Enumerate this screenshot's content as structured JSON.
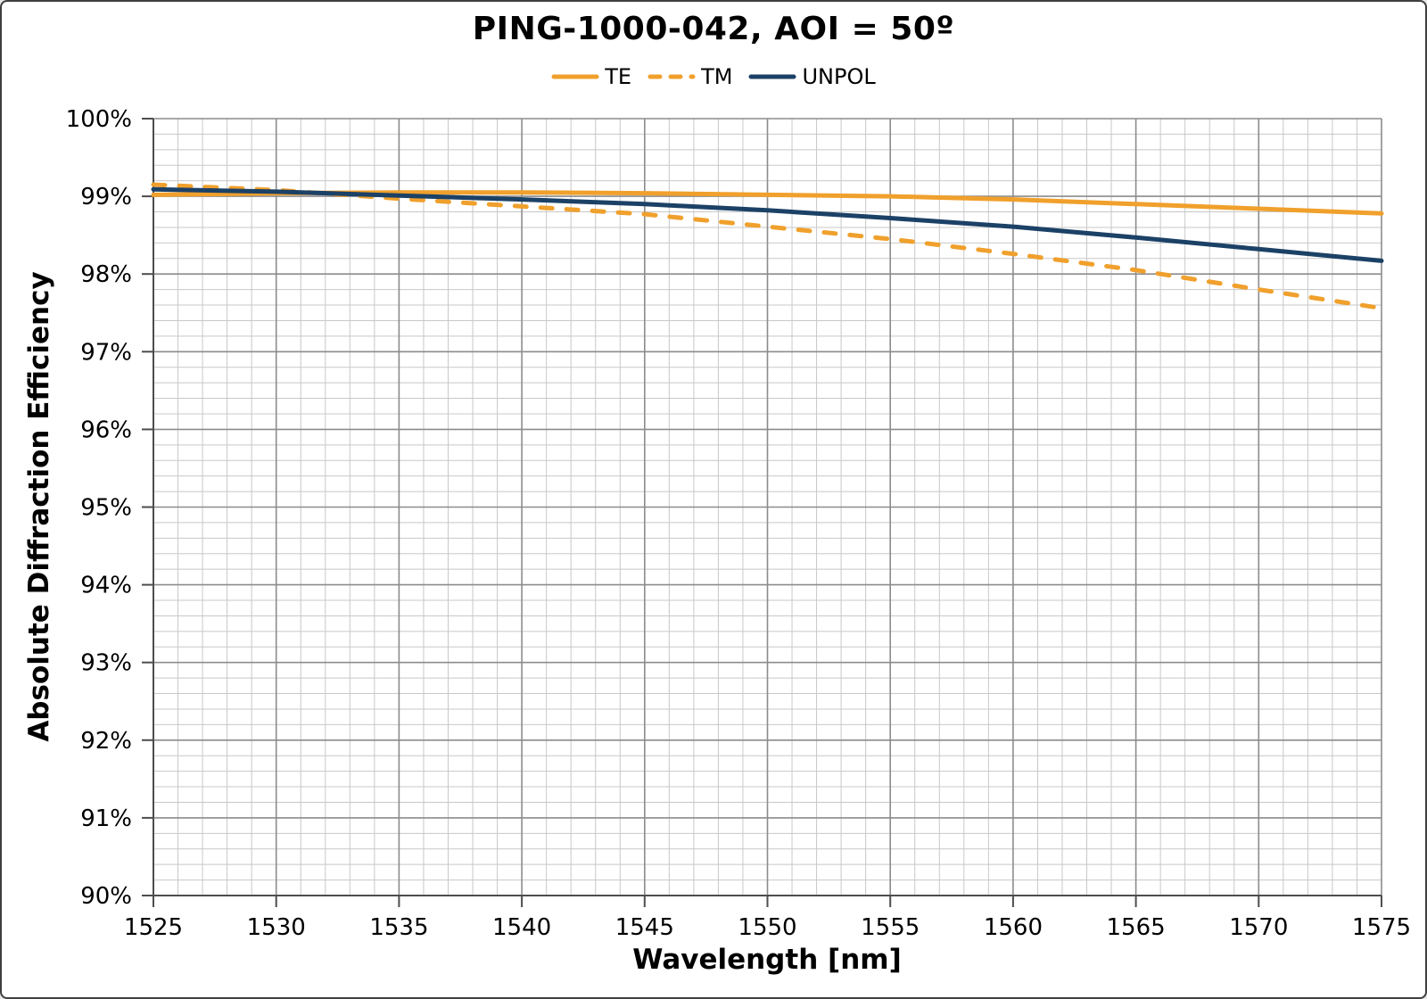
{
  "window": {
    "background": "#ffffff",
    "border_color": "#3f3f3f"
  },
  "chart_data": {
    "type": "line",
    "title": "PING-1000-042, AOI = 50º",
    "xlabel": "Wavelength [nm]",
    "ylabel": "Absolute Diffraction Efficiency",
    "xlim": [
      1525,
      1575
    ],
    "ylim": [
      90,
      100
    ],
    "x_major_step": 5,
    "x_minor_step": 1,
    "y_major_step": 1,
    "y_minor_step": 0.2,
    "grid": {
      "on": true,
      "minor_color": "#c8c8c8",
      "major_color": "#8c8c8c",
      "axis_color": "#4d4d4d"
    },
    "legend_position": "top-center",
    "x_tick_values": [
      1525,
      1530,
      1535,
      1540,
      1545,
      1550,
      1555,
      1560,
      1565,
      1570,
      1575
    ],
    "x_tick_labels": [
      "1525",
      "1530",
      "1535",
      "1540",
      "1545",
      "1550",
      "1555",
      "1560",
      "1565",
      "1570",
      "1575"
    ],
    "y_tick_values": [
      100,
      99,
      98,
      97,
      96,
      95,
      94,
      93,
      92,
      91,
      90
    ],
    "y_tick_labels": [
      "100%",
      "99%",
      "98%",
      "97%",
      "96%",
      "95%",
      "94%",
      "93%",
      "92%",
      "91%",
      "90%"
    ],
    "x": [
      1525,
      1530,
      1535,
      1540,
      1545,
      1550,
      1555,
      1560,
      1565,
      1570,
      1575
    ],
    "series": [
      {
        "name": "TE",
        "color": "#F0A02C",
        "style": "solid",
        "values": [
          99.02,
          99.04,
          99.05,
          99.05,
          99.04,
          99.02,
          99.0,
          98.96,
          98.9,
          98.84,
          98.78
        ]
      },
      {
        "name": "TM",
        "color": "#F0A02C",
        "style": "dashed",
        "values": [
          99.15,
          99.08,
          98.97,
          98.87,
          98.77,
          98.61,
          98.45,
          98.26,
          98.05,
          97.8,
          97.56
        ]
      },
      {
        "name": "UNPOL",
        "color": "#1C4166",
        "style": "solid",
        "values": [
          99.09,
          99.06,
          99.01,
          98.96,
          98.9,
          98.82,
          98.72,
          98.61,
          98.47,
          98.32,
          98.17
        ]
      }
    ]
  }
}
